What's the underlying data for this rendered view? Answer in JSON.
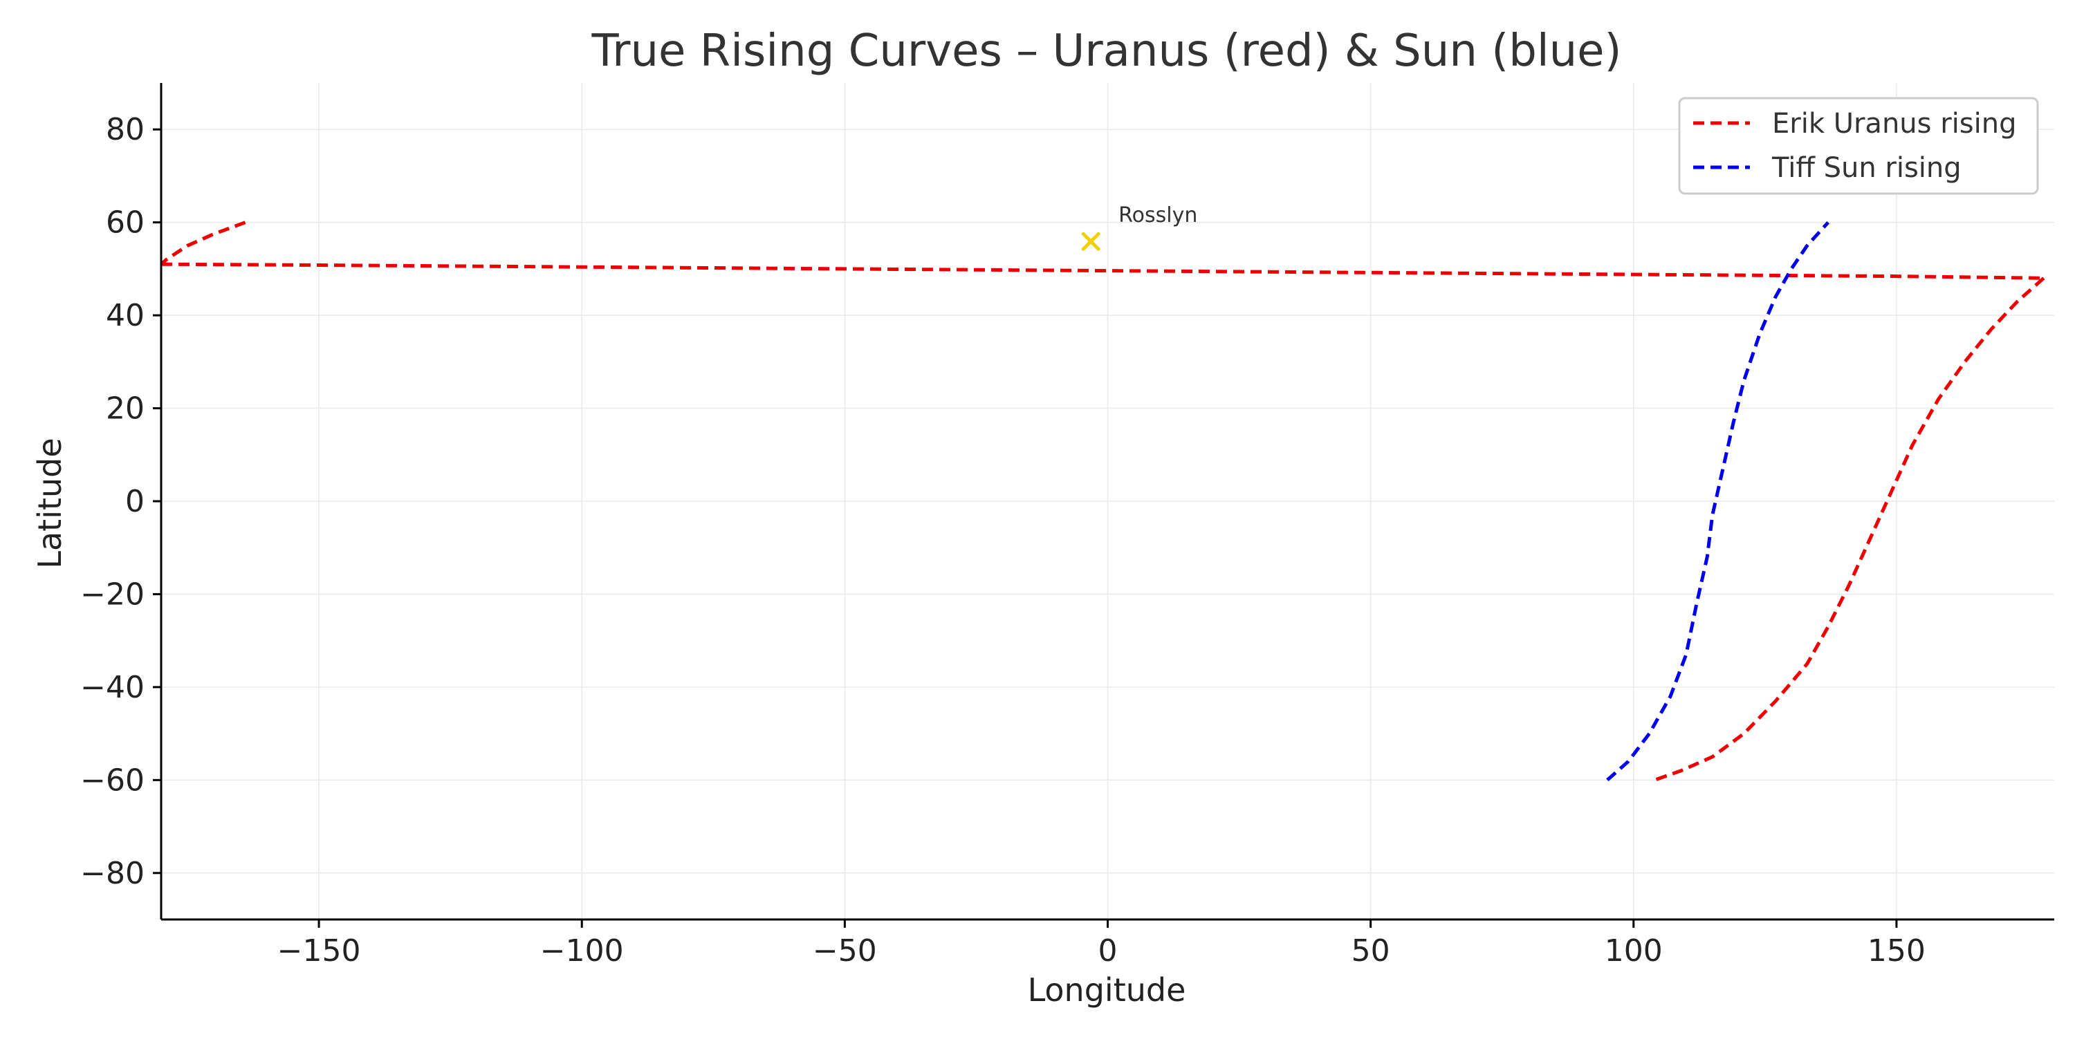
{
  "chart_data": {
    "type": "line",
    "title": "True Rising Curves – Uranus (red) & Sun (blue)",
    "xlabel": "Longitude",
    "ylabel": "Latitude",
    "xlim": [
      -180,
      180
    ],
    "ylim": [
      -90,
      90
    ],
    "xticks": [
      -150,
      -100,
      -50,
      0,
      50,
      100,
      150
    ],
    "yticks": [
      -80,
      -60,
      -40,
      -20,
      0,
      20,
      40,
      60,
      80
    ],
    "xtick_labels": [
      "−150",
      "−100",
      "−50",
      "0",
      "50",
      "100",
      "150"
    ],
    "ytick_labels": [
      "−80",
      "−60",
      "−40",
      "−20",
      "0",
      "20",
      "40",
      "60",
      "80"
    ],
    "grid": true,
    "legend_position": "top-right",
    "series": [
      {
        "name": "Erik Uranus rising",
        "color": "#ee0000",
        "style": "dashed",
        "segments": [
          [
            [
              -164,
              60
            ],
            [
              -170,
              57.5
            ],
            [
              -175,
              55
            ],
            [
              -179,
              52
            ],
            [
              -180,
              51
            ]
          ],
          [
            [
              -180,
              51
            ],
            [
              -150,
              50.8
            ],
            [
              -100,
              50.4
            ],
            [
              -50,
              50
            ],
            [
              0,
              49.6
            ],
            [
              50,
              49.2
            ],
            [
              100,
              48.8
            ],
            [
              150,
              48.4
            ],
            [
              178,
              48
            ]
          ],
          [
            [
              178,
              48
            ],
            [
              173,
              43
            ],
            [
              168,
              37
            ],
            [
              163,
              30
            ],
            [
              158,
              22
            ],
            [
              153,
              12
            ],
            [
              149,
              2
            ],
            [
              145,
              -8
            ],
            [
              141,
              -18
            ],
            [
              137,
              -27
            ],
            [
              133,
              -35
            ],
            [
              127,
              -43
            ],
            [
              121,
              -50
            ],
            [
              115,
              -55
            ],
            [
              109,
              -58
            ],
            [
              104,
              -60
            ]
          ]
        ]
      },
      {
        "name": "Tiff Sun rising",
        "color": "#0000ee",
        "style": "dashed",
        "segments": [
          [
            [
              95,
              -60
            ],
            [
              99,
              -56
            ],
            [
              103,
              -50
            ],
            [
              107,
              -42
            ],
            [
              110,
              -33
            ],
            [
              112,
              -22
            ],
            [
              114,
              -12
            ],
            [
              115,
              -3
            ],
            [
              117,
              7
            ],
            [
              119,
              17
            ],
            [
              121,
              26
            ],
            [
              124,
              36
            ],
            [
              127,
              44
            ],
            [
              130,
              50
            ],
            [
              133,
              55
            ],
            [
              137,
              60
            ]
          ]
        ]
      }
    ],
    "markers": [
      {
        "label": "Rosslyn",
        "x": -3.2,
        "y": 55.9,
        "symbol": "x",
        "color": "#f0d000"
      }
    ]
  }
}
